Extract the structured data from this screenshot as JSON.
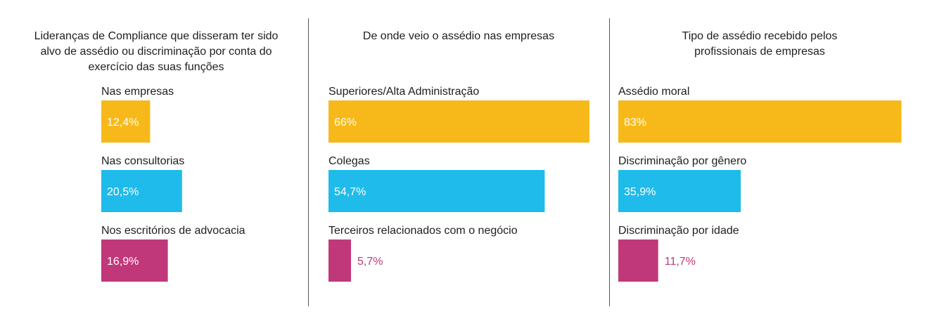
{
  "colors": {
    "yellow": "#f7b919",
    "blue": "#1fbbea",
    "magenta": "#c0387a",
    "text": "#1e1e1e",
    "inside_label": "#ffffff"
  },
  "chart_data": [
    {
      "type": "bar",
      "orientation": "horizontal",
      "title": "Lideranças de Compliance que disseram ter sido alvo de assédio ou discriminação por conta do exercício das suas funções",
      "title_lines": [
        "Lideranças de Compliance que disseram ter sido",
        "alvo de assédio ou discriminação por conta do",
        "exercício das suas funções"
      ],
      "xlim": [
        0,
        100
      ],
      "categories": [
        "Nas empresas",
        "Nas consultorias",
        "Nos escritórios de advocacia"
      ],
      "values": [
        12.4,
        20.5,
        16.9
      ],
      "value_labels": [
        "12,4%",
        "20,5%",
        "16,9%"
      ],
      "bar_colors": [
        "#f7b919",
        "#1fbbea",
        "#c0387a"
      ]
    },
    {
      "type": "bar",
      "orientation": "horizontal",
      "title": "De onde veio o assédio nas empresas",
      "title_lines": [
        "De onde veio o assédio nas empresas"
      ],
      "xlim": [
        0,
        100
      ],
      "categories": [
        "Superiores/Alta Administração",
        "Colegas",
        "Terceiros relacionados com o negócio"
      ],
      "values": [
        66,
        54.7,
        5.7
      ],
      "value_labels": [
        "66%",
        "54,7%",
        "5,7%"
      ],
      "bar_colors": [
        "#f7b919",
        "#1fbbea",
        "#c0387a"
      ]
    },
    {
      "type": "bar",
      "orientation": "horizontal",
      "title": "Tipo de assédio recebido pelos profissionais de empresas",
      "title_lines": [
        "Tipo de assédio recebido pelos",
        "profissionais de empresas"
      ],
      "xlim": [
        0,
        100
      ],
      "categories": [
        "Assédio moral",
        "Discriminação por gênero",
        "Discriminação por idade"
      ],
      "values": [
        83,
        35.9,
        11.7
      ],
      "value_labels": [
        "83%",
        "35,9%",
        "11,7%"
      ],
      "bar_colors": [
        "#f7b919",
        "#1fbbea",
        "#c0387a"
      ]
    }
  ]
}
